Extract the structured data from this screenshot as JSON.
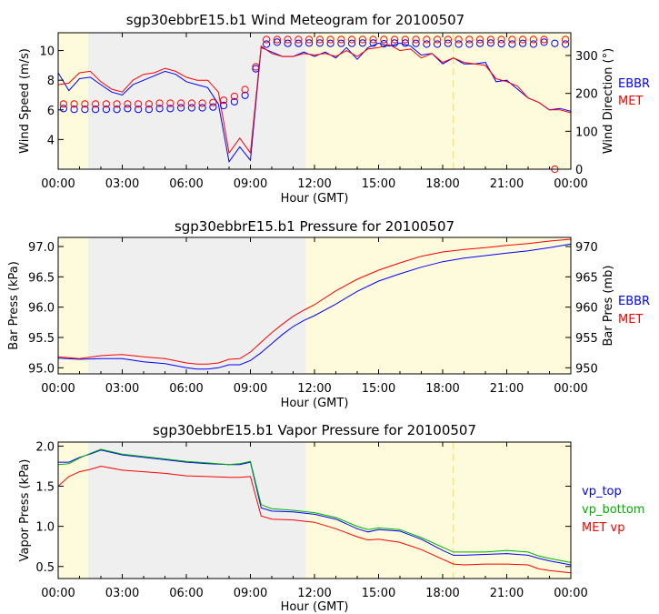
{
  "colors": {
    "day_shade": "#fdfbdc",
    "night_shade": "#efefef",
    "ebbr": "#0000ff",
    "met": "#ff0000",
    "vp_bottom": "#00b000",
    "marker": "#f5e066",
    "frame": "#000000"
  },
  "chart_data": [
    {
      "type": "line",
      "id": "wind",
      "title": "sgp30ebbrE15.b1 Wind Meteogram for 20100507",
      "xlabel": "Hour (GMT)",
      "ylabel": "Wind Speed (m/s)",
      "y2label": "Wind Direction (°)",
      "xlim": [
        0,
        24
      ],
      "ylim": [
        2,
        11.2
      ],
      "y2lim": [
        0,
        360
      ],
      "x_ticks": [
        0,
        3,
        6,
        9,
        12,
        15,
        18,
        21,
        24
      ],
      "x_tick_labels": [
        "00:00",
        "03:00",
        "06:00",
        "09:00",
        "12:00",
        "15:00",
        "18:00",
        "21:00",
        "00:00"
      ],
      "y_ticks": [
        4,
        6,
        8,
        10
      ],
      "y_tick_labels": [
        "4",
        "6",
        "8",
        "10"
      ],
      "y2_ticks": [
        0,
        100,
        200,
        300
      ],
      "y2_tick_labels": [
        "0",
        "100",
        "200",
        "300"
      ],
      "shading": {
        "night_start": 1.4,
        "night_end": 11.6
      },
      "marker_line_x": 18.5,
      "legend": [
        "EBBR",
        "MET"
      ],
      "series": [
        {
          "name": "EBBR",
          "kind": "line",
          "axis": "left",
          "x": [
            0,
            0.5,
            1,
            1.5,
            2,
            2.5,
            3,
            3.5,
            4,
            4.5,
            5,
            5.5,
            6,
            6.5,
            7,
            7.5,
            8,
            8.5,
            9,
            9.5,
            10,
            10.5,
            11,
            11.5,
            12,
            12.5,
            13,
            13.5,
            14,
            14.5,
            15,
            15.5,
            16,
            16.5,
            17,
            17.5,
            18,
            18.5,
            19,
            19.5,
            20,
            20.5,
            21,
            21.5,
            22,
            22.5,
            23,
            23.5,
            24
          ],
          "values": [
            8.5,
            7.3,
            8.1,
            8.2,
            7.7,
            7.2,
            7.0,
            7.7,
            8.0,
            8.3,
            8.6,
            8.4,
            7.9,
            7.7,
            7.5,
            6.4,
            2.5,
            3.5,
            2.6,
            10.2,
            9.9,
            9.6,
            9.6,
            9.9,
            9.6,
            9.9,
            9.5,
            10.2,
            9.4,
            10.2,
            10.5,
            10.3,
            10.5,
            10.3,
            9.7,
            9.8,
            9.1,
            9.5,
            9.1,
            9.1,
            9.2,
            7.9,
            8.0,
            7.4,
            6.8,
            6.5,
            6.0,
            6.1,
            5.9
          ]
        },
        {
          "name": "MET",
          "kind": "line",
          "axis": "left",
          "x": [
            0,
            0.5,
            1,
            1.5,
            2,
            2.5,
            3,
            3.5,
            4,
            4.5,
            5,
            5.5,
            6,
            6.5,
            7,
            7.5,
            8,
            8.5,
            9,
            9.5,
            10,
            10.5,
            11,
            11.5,
            12,
            12.5,
            13,
            13.5,
            14,
            14.5,
            15,
            15.5,
            16,
            16.5,
            17,
            17.5,
            18,
            18.5,
            19,
            19.5,
            20,
            20.5,
            21,
            21.5,
            22,
            22.5,
            23,
            23.5,
            24
          ],
          "values": [
            7.7,
            7.8,
            8.5,
            8.6,
            7.9,
            7.4,
            7.2,
            8.0,
            8.4,
            8.5,
            8.8,
            8.6,
            8.2,
            8.0,
            8.0,
            7.2,
            3.1,
            4.1,
            3.1,
            10.3,
            9.8,
            9.6,
            9.6,
            9.8,
            9.7,
            9.8,
            9.6,
            10.0,
            9.6,
            10.1,
            10.2,
            10.4,
            10.0,
            10.1,
            9.5,
            9.8,
            9.2,
            9.5,
            9.2,
            9.1,
            9.0,
            8.1,
            7.9,
            7.6,
            6.8,
            6.5,
            6.0,
            6.0,
            5.8
          ]
        },
        {
          "name": "EBBR",
          "kind": "scatter",
          "axis": "right",
          "x": [
            0.25,
            0.75,
            1.25,
            1.75,
            2.25,
            2.75,
            3.25,
            3.75,
            4.25,
            4.75,
            5.25,
            5.75,
            6.25,
            6.75,
            7.25,
            7.75,
            8.25,
            8.75,
            9.25,
            9.75,
            10.25,
            10.75,
            11.25,
            11.75,
            12.25,
            12.75,
            13.25,
            13.75,
            14.25,
            14.75,
            15.25,
            15.75,
            16.25,
            16.75,
            17.25,
            17.75,
            18.25,
            18.75,
            19.25,
            19.75,
            20.25,
            20.75,
            21.25,
            21.75,
            22.25,
            22.75,
            23.25,
            23.75
          ],
          "values": [
            160,
            158,
            158,
            158,
            158,
            158,
            160,
            158,
            158,
            160,
            160,
            162,
            162,
            162,
            164,
            168,
            178,
            195,
            265,
            330,
            335,
            332,
            332,
            333,
            333,
            332,
            332,
            332,
            333,
            333,
            331,
            333,
            333,
            332,
            330,
            330,
            332,
            330,
            330,
            332,
            333,
            331,
            330,
            332,
            330,
            335,
            332,
            330
          ]
        },
        {
          "name": "MET",
          "kind": "scatter",
          "axis": "right",
          "x": [
            0.25,
            0.75,
            1.25,
            1.75,
            2.25,
            2.75,
            3.25,
            3.75,
            4.25,
            4.75,
            5.25,
            5.75,
            6.25,
            6.75,
            7.25,
            7.75,
            8.25,
            8.75,
            9.25,
            9.75,
            10.25,
            10.75,
            11.25,
            11.75,
            12.25,
            12.75,
            13.25,
            13.75,
            14.25,
            14.75,
            15.25,
            15.75,
            16.25,
            16.75,
            17.25,
            17.75,
            18.25,
            18.75,
            19.25,
            19.75,
            20.25,
            20.75,
            21.25,
            21.75,
            22.25,
            22.75,
            23.25,
            23.75
          ],
          "values": [
            172,
            172,
            172,
            172,
            172,
            172,
            172,
            172,
            172,
            174,
            174,
            174,
            174,
            174,
            176,
            182,
            192,
            210,
            270,
            342,
            342,
            342,
            342,
            342,
            342,
            342,
            342,
            342,
            342,
            342,
            342,
            342,
            342,
            342,
            342,
            342,
            342,
            342,
            342,
            342,
            342,
            342,
            342,
            342,
            342,
            342,
            0,
            342
          ]
        }
      ]
    },
    {
      "type": "line",
      "id": "pressure",
      "title": "sgp30ebbrE15.b1 Pressure for 20100507",
      "xlabel": "Hour (GMT)",
      "ylabel": "Bar Press (kPa)",
      "y2label": "Bar Pres (mb)",
      "xlim": [
        0,
        24
      ],
      "ylim": [
        94.9,
        97.15
      ],
      "y2lim": [
        949,
        971.5
      ],
      "x_ticks": [
        0,
        3,
        6,
        9,
        12,
        15,
        18,
        21,
        24
      ],
      "x_tick_labels": [
        "00:00",
        "03:00",
        "06:00",
        "09:00",
        "12:00",
        "15:00",
        "18:00",
        "21:00",
        "00:00"
      ],
      "y_ticks": [
        95.0,
        95.5,
        96.0,
        96.5,
        97.0
      ],
      "y_tick_labels": [
        "95.0",
        "95.5",
        "96.0",
        "96.5",
        "97.0"
      ],
      "y2_ticks": [
        950,
        955,
        960,
        965,
        970
      ],
      "y2_tick_labels": [
        "950",
        "955",
        "960",
        "965",
        "970"
      ],
      "shading": {
        "night_start": 1.4,
        "night_end": 11.6
      },
      "legend": [
        "EBBR",
        "MET"
      ],
      "series": [
        {
          "name": "EBBR",
          "kind": "line",
          "axis": "left",
          "x": [
            0,
            1,
            2,
            3,
            4,
            5,
            6,
            6.5,
            7,
            7.5,
            8,
            8.5,
            9,
            9.5,
            10,
            10.5,
            11,
            11.5,
            12,
            13,
            14,
            15,
            16,
            17,
            18,
            19,
            20,
            21,
            22,
            23,
            24
          ],
          "values": [
            95.16,
            95.14,
            95.15,
            95.15,
            95.1,
            95.07,
            95.0,
            94.98,
            94.98,
            95.0,
            95.05,
            95.05,
            95.12,
            95.25,
            95.4,
            95.55,
            95.68,
            95.78,
            95.86,
            96.05,
            96.26,
            96.43,
            96.55,
            96.66,
            96.75,
            96.81,
            96.85,
            96.89,
            96.93,
            96.98,
            97.04
          ]
        },
        {
          "name": "MET",
          "kind": "line",
          "axis": "left",
          "x": [
            0,
            1,
            2,
            3,
            4,
            5,
            6,
            6.5,
            7,
            7.5,
            8,
            8.5,
            9,
            9.5,
            10,
            10.5,
            11,
            11.5,
            12,
            13,
            14,
            15,
            16,
            17,
            18,
            19,
            20,
            21,
            22,
            23,
            24
          ],
          "values": [
            95.18,
            95.15,
            95.2,
            95.22,
            95.18,
            95.15,
            95.08,
            95.06,
            95.06,
            95.08,
            95.14,
            95.15,
            95.26,
            95.42,
            95.58,
            95.72,
            95.85,
            95.95,
            96.04,
            96.27,
            96.46,
            96.61,
            96.73,
            96.84,
            96.91,
            96.95,
            96.98,
            97.02,
            97.05,
            97.09,
            97.12
          ]
        }
      ]
    },
    {
      "type": "line",
      "id": "vapor",
      "title": "sgp30ebbrE15.b1 Vapor Pressure for 20100507",
      "xlabel": "Hour (GMT)",
      "ylabel": "Vapor Press (kPa)",
      "xlim": [
        0,
        24
      ],
      "ylim": [
        0.35,
        2.05
      ],
      "x_ticks": [
        0,
        3,
        6,
        9,
        12,
        15,
        18,
        21,
        24
      ],
      "x_tick_labels": [
        "00:00",
        "03:00",
        "06:00",
        "09:00",
        "12:00",
        "15:00",
        "18:00",
        "21:00",
        "00:00"
      ],
      "y_ticks": [
        0.5,
        1.0,
        1.5,
        2.0
      ],
      "y_tick_labels": [
        "0.5",
        "1.0",
        "1.5",
        "2.0"
      ],
      "shading": {
        "night_start": 1.4,
        "night_end": 11.6
      },
      "marker_line_x": 18.5,
      "legend": [
        "vp_top",
        "vp_bottom",
        "MET vp"
      ],
      "series": [
        {
          "name": "vp_top",
          "kind": "line",
          "axis": "left",
          "x": [
            0,
            0.5,
            1,
            1.5,
            2,
            3,
            4,
            5,
            6,
            7,
            8,
            8.5,
            9,
            9.5,
            10,
            11,
            12,
            13,
            14,
            14.5,
            15,
            16,
            17,
            18,
            18.5,
            19,
            20,
            21,
            22,
            22.5,
            23,
            24
          ],
          "values": [
            1.8,
            1.8,
            1.86,
            1.9,
            1.95,
            1.89,
            1.86,
            1.83,
            1.8,
            1.78,
            1.77,
            1.77,
            1.8,
            1.23,
            1.19,
            1.18,
            1.15,
            1.09,
            0.97,
            0.93,
            0.96,
            0.94,
            0.84,
            0.7,
            0.64,
            0.64,
            0.65,
            0.66,
            0.64,
            0.6,
            0.57,
            0.52
          ]
        },
        {
          "name": "vp_bottom",
          "kind": "line",
          "axis": "left",
          "x": [
            0,
            0.5,
            1,
            1.5,
            2,
            3,
            4,
            5,
            6,
            7,
            8,
            8.5,
            9,
            9.5,
            10,
            11,
            12,
            13,
            14,
            14.5,
            15,
            16,
            17,
            18,
            18.5,
            19,
            20,
            21,
            22,
            22.5,
            23,
            24
          ],
          "values": [
            1.77,
            1.78,
            1.85,
            1.91,
            1.96,
            1.9,
            1.87,
            1.84,
            1.81,
            1.79,
            1.77,
            1.78,
            1.81,
            1.27,
            1.22,
            1.2,
            1.17,
            1.11,
            1.0,
            0.96,
            0.98,
            0.96,
            0.86,
            0.74,
            0.68,
            0.68,
            0.68,
            0.7,
            0.68,
            0.63,
            0.6,
            0.55
          ]
        },
        {
          "name": "MET vp",
          "kind": "line",
          "axis": "left",
          "x": [
            0,
            0.5,
            1,
            1.5,
            2,
            3,
            4,
            5,
            6,
            7,
            8,
            8.5,
            9,
            9.5,
            10,
            11,
            12,
            13,
            14,
            14.5,
            15,
            16,
            17,
            18,
            18.5,
            19,
            20,
            21,
            22,
            22.5,
            23,
            24
          ],
          "values": [
            1.5,
            1.62,
            1.68,
            1.71,
            1.75,
            1.7,
            1.68,
            1.66,
            1.63,
            1.62,
            1.61,
            1.61,
            1.62,
            1.13,
            1.09,
            1.08,
            1.05,
            0.97,
            0.87,
            0.83,
            0.84,
            0.8,
            0.71,
            0.59,
            0.53,
            0.52,
            0.53,
            0.53,
            0.52,
            0.47,
            0.45,
            0.42
          ]
        }
      ]
    }
  ]
}
